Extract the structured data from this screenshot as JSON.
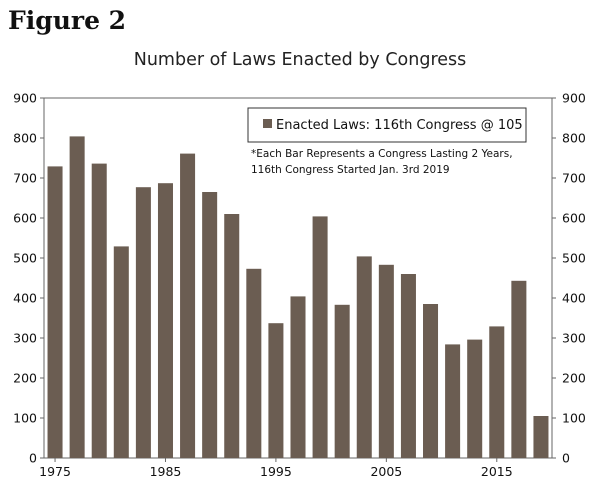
{
  "figure_label": "Figure 2",
  "chart_data": {
    "type": "bar",
    "title": "Number of Laws Enacted by Congress",
    "series": [
      {
        "name": "Enacted Laws: 116th Congress @ 105",
        "color": "#6b5d52",
        "values": [
          729,
          804,
          736,
          529,
          677,
          687,
          761,
          665,
          610,
          473,
          337,
          404,
          604,
          383,
          504,
          483,
          460,
          385,
          284,
          296,
          329,
          443,
          105
        ]
      }
    ],
    "x_start": 1975,
    "x_step": 2,
    "x_ticks": [
      1975,
      1985,
      1995,
      2005,
      2015
    ],
    "ylim": [
      0,
      900
    ],
    "y_ticks": [
      0,
      100,
      200,
      300,
      400,
      500,
      600,
      700,
      800,
      900
    ],
    "notes": [
      "*Each Bar Represents  a Congress Lasting 2 Years,",
      "116th Congress Started Jan. 3rd 2019"
    ],
    "xlabel": "",
    "ylabel": "",
    "grid": false,
    "legend_position": "top-right"
  }
}
